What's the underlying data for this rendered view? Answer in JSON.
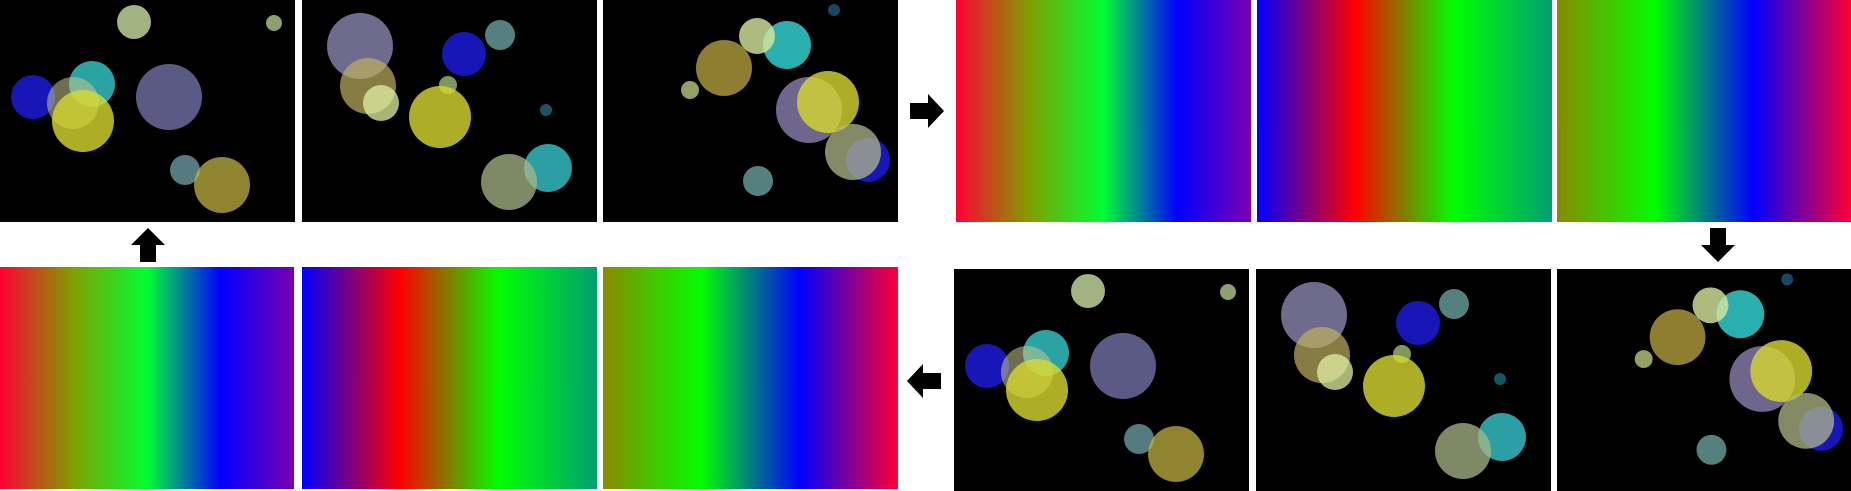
{
  "gradients": {
    "a": [
      "#ff0033",
      "#80a000",
      "#00ff33",
      "#0000ff",
      "#7a00b0"
    ],
    "b": [
      "#0000ff",
      "#ff0000",
      "#00ff00",
      "#00a070"
    ],
    "c": [
      "#8a8a00",
      "#00ff00",
      "#0000ff",
      "#ff0033"
    ]
  },
  "colors": {
    "background": "#ffffff",
    "panel_background": "#000000",
    "arrow": "#000000"
  },
  "icons": [
    "arrow-right-icon",
    "arrow-down-icon",
    "arrow-left-icon",
    "arrow-up-icon"
  ]
}
